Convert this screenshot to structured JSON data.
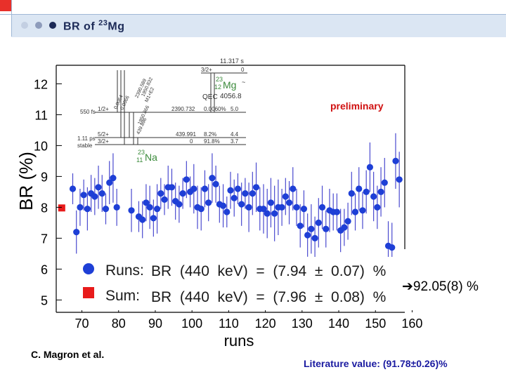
{
  "header": {
    "title": "BR of",
    "mass_number": "23",
    "element": "Mg"
  },
  "author": "C. Magron et al.",
  "literature": "Literature value: (91.78±0.26)%",
  "result_arrow": "➔",
  "result_text": "92.05(8) %",
  "colors": {
    "corner": "#e8302a",
    "band": "#dbe6f3",
    "runs_marker": "#1e3fd6",
    "sum_marker": "#e81b1b",
    "preliminary": "#d01010",
    "literature": "#1a1aa0"
  },
  "chart_data": {
    "type": "scatter",
    "xlabel": "runs",
    "ylabel": "BR (%)",
    "xlim": [
      63,
      158
    ],
    "ylim": [
      4.6,
      12.6
    ],
    "xticks": [
      70,
      80,
      90,
      100,
      110,
      120,
      130,
      140,
      150,
      160
    ],
    "yticks": [
      5,
      6,
      7,
      8,
      9,
      10,
      11,
      12
    ],
    "annotation": "preliminary",
    "legend": [
      {
        "label": "Runs:",
        "formula": "BR  (440  keV)  =  (7.94  ±  0.07)  %"
      },
      {
        "label": "Sum:",
        "formula": "BR  (440  keV)  =  (7.96  ±  0.08)  %"
      }
    ],
    "sum_point": {
      "x": 64.5,
      "y": 7.98
    },
    "series": [
      {
        "x": [
          67.5,
          68.5,
          69.5,
          70.5,
          71.5,
          72.5,
          73.5,
          74.5,
          75.5,
          76.5,
          77.5,
          78.5,
          79.5,
          83.5,
          85.5,
          86.5,
          87.5,
          88.5,
          89.5,
          90.5,
          91.5,
          92.5,
          93.5,
          94.5,
          95.5,
          96.5,
          97.5,
          98.5,
          99.5,
          100.5,
          101.5,
          102.5,
          103.5,
          104.5,
          105.5,
          106.5,
          107.5,
          108.5,
          109.5,
          110.5,
          111.5,
          112.5,
          113.5,
          114.5,
          115.5,
          116.5,
          117.5,
          118.5,
          119.5,
          120.5,
          121.5,
          122.5,
          123.5,
          124.5,
          125.5,
          126.5,
          127.5,
          128.5,
          129.5,
          130.5,
          131.5,
          132.5,
          133.5,
          134.5,
          135.5,
          136.5,
          137.5,
          138.5,
          139.5,
          140.5,
          141.5,
          142.5,
          143.5,
          144.5,
          145.5,
          146.5,
          147.5,
          148.5,
          149.5,
          150.5,
          151.5,
          152.5,
          153.5,
          154.5,
          155.5,
          156.5
        ],
        "y": [
          8.6,
          7.2,
          8.0,
          8.4,
          7.95,
          8.45,
          8.35,
          8.65,
          8.45,
          7.95,
          8.8,
          8.95,
          8.0,
          7.9,
          7.7,
          7.6,
          8.15,
          8.0,
          7.65,
          7.95,
          8.45,
          8.25,
          8.65,
          8.65,
          8.2,
          8.1,
          8.45,
          8.9,
          8.5,
          8.6,
          8.0,
          7.95,
          8.6,
          8.15,
          8.95,
          8.75,
          8.1,
          8.05,
          7.85,
          8.55,
          8.3,
          8.6,
          8.1,
          8.45,
          8.0,
          8.45,
          8.65,
          7.95,
          7.95,
          7.8,
          8.15,
          7.8,
          8.0,
          8.0,
          8.35,
          8.15,
          8.6,
          8.0,
          7.4,
          7.95,
          7.1,
          7.3,
          7.0,
          7.5,
          8.0,
          7.3,
          7.9,
          7.85,
          7.85,
          7.25,
          7.35,
          7.55,
          8.45,
          7.85,
          8.6,
          7.9,
          8.5,
          9.3,
          8.35,
          8.0,
          8.5,
          8.8,
          6.75,
          6.7,
          9.5,
          8.9
        ],
        "err": [
          0.5,
          0.7,
          0.6,
          0.5,
          0.7,
          0.6,
          0.6,
          0.7,
          0.6,
          0.5,
          0.7,
          0.8,
          0.6,
          0.7,
          0.5,
          0.6,
          0.6,
          0.7,
          0.6,
          0.8,
          0.5,
          0.5,
          0.7,
          0.6,
          0.6,
          0.6,
          0.5,
          0.6,
          0.5,
          0.8,
          0.7,
          0.7,
          0.6,
          0.6,
          0.8,
          0.6,
          0.6,
          0.7,
          0.5,
          0.6,
          0.6,
          0.5,
          0.7,
          0.5,
          0.8,
          0.7,
          0.8,
          0.7,
          0.8,
          0.8,
          0.8,
          0.9,
          0.9,
          0.6,
          0.6,
          0.7,
          0.7,
          0.6,
          0.7,
          0.6,
          0.7,
          0.8,
          0.7,
          0.8,
          0.7,
          0.6,
          0.7,
          0.6,
          0.6,
          0.7,
          0.6,
          0.6,
          0.7,
          0.6,
          0.7,
          0.6,
          0.7,
          0.8,
          0.8,
          0.7,
          0.8,
          0.8,
          0.8,
          0.8,
          0.9,
          0.9
        ]
      }
    ]
  },
  "level_scheme": {
    "top_state": "11.317 s",
    "top_spin": "3/2+",
    "top_energy": "0",
    "parent_mass": "23",
    "parent_z": "12",
    "parent_symbol": "Mg",
    "parent_suffix": "~",
    "q_label": "QEC",
    "q_value": "4056.8",
    "transition_labels": [
      "2390.589",
      "1950.832",
      "0.0064",
      "0.0066",
      "2390.732",
      "M1+E2",
      "1950.866",
      "439.896",
      "M1+E2"
    ],
    "levels": [
      {
        "halflife": "550 fs",
        "spin": "1/2+",
        "energy": "2390.732",
        "feed": "0.0060%",
        "logft": "5.0"
      },
      {
        "halflife": "1.11 ps",
        "spin": "5/2+",
        "energy": "439.991",
        "feed": "8.2%",
        "logft": "4.4"
      },
      {
        "halflife": "stable",
        "spin": "3/2+",
        "energy": "0",
        "feed": "91.8%",
        "logft": "3.7"
      }
    ],
    "daughter_mass": "23",
    "daughter_z": "11",
    "daughter_symbol": "Na"
  }
}
